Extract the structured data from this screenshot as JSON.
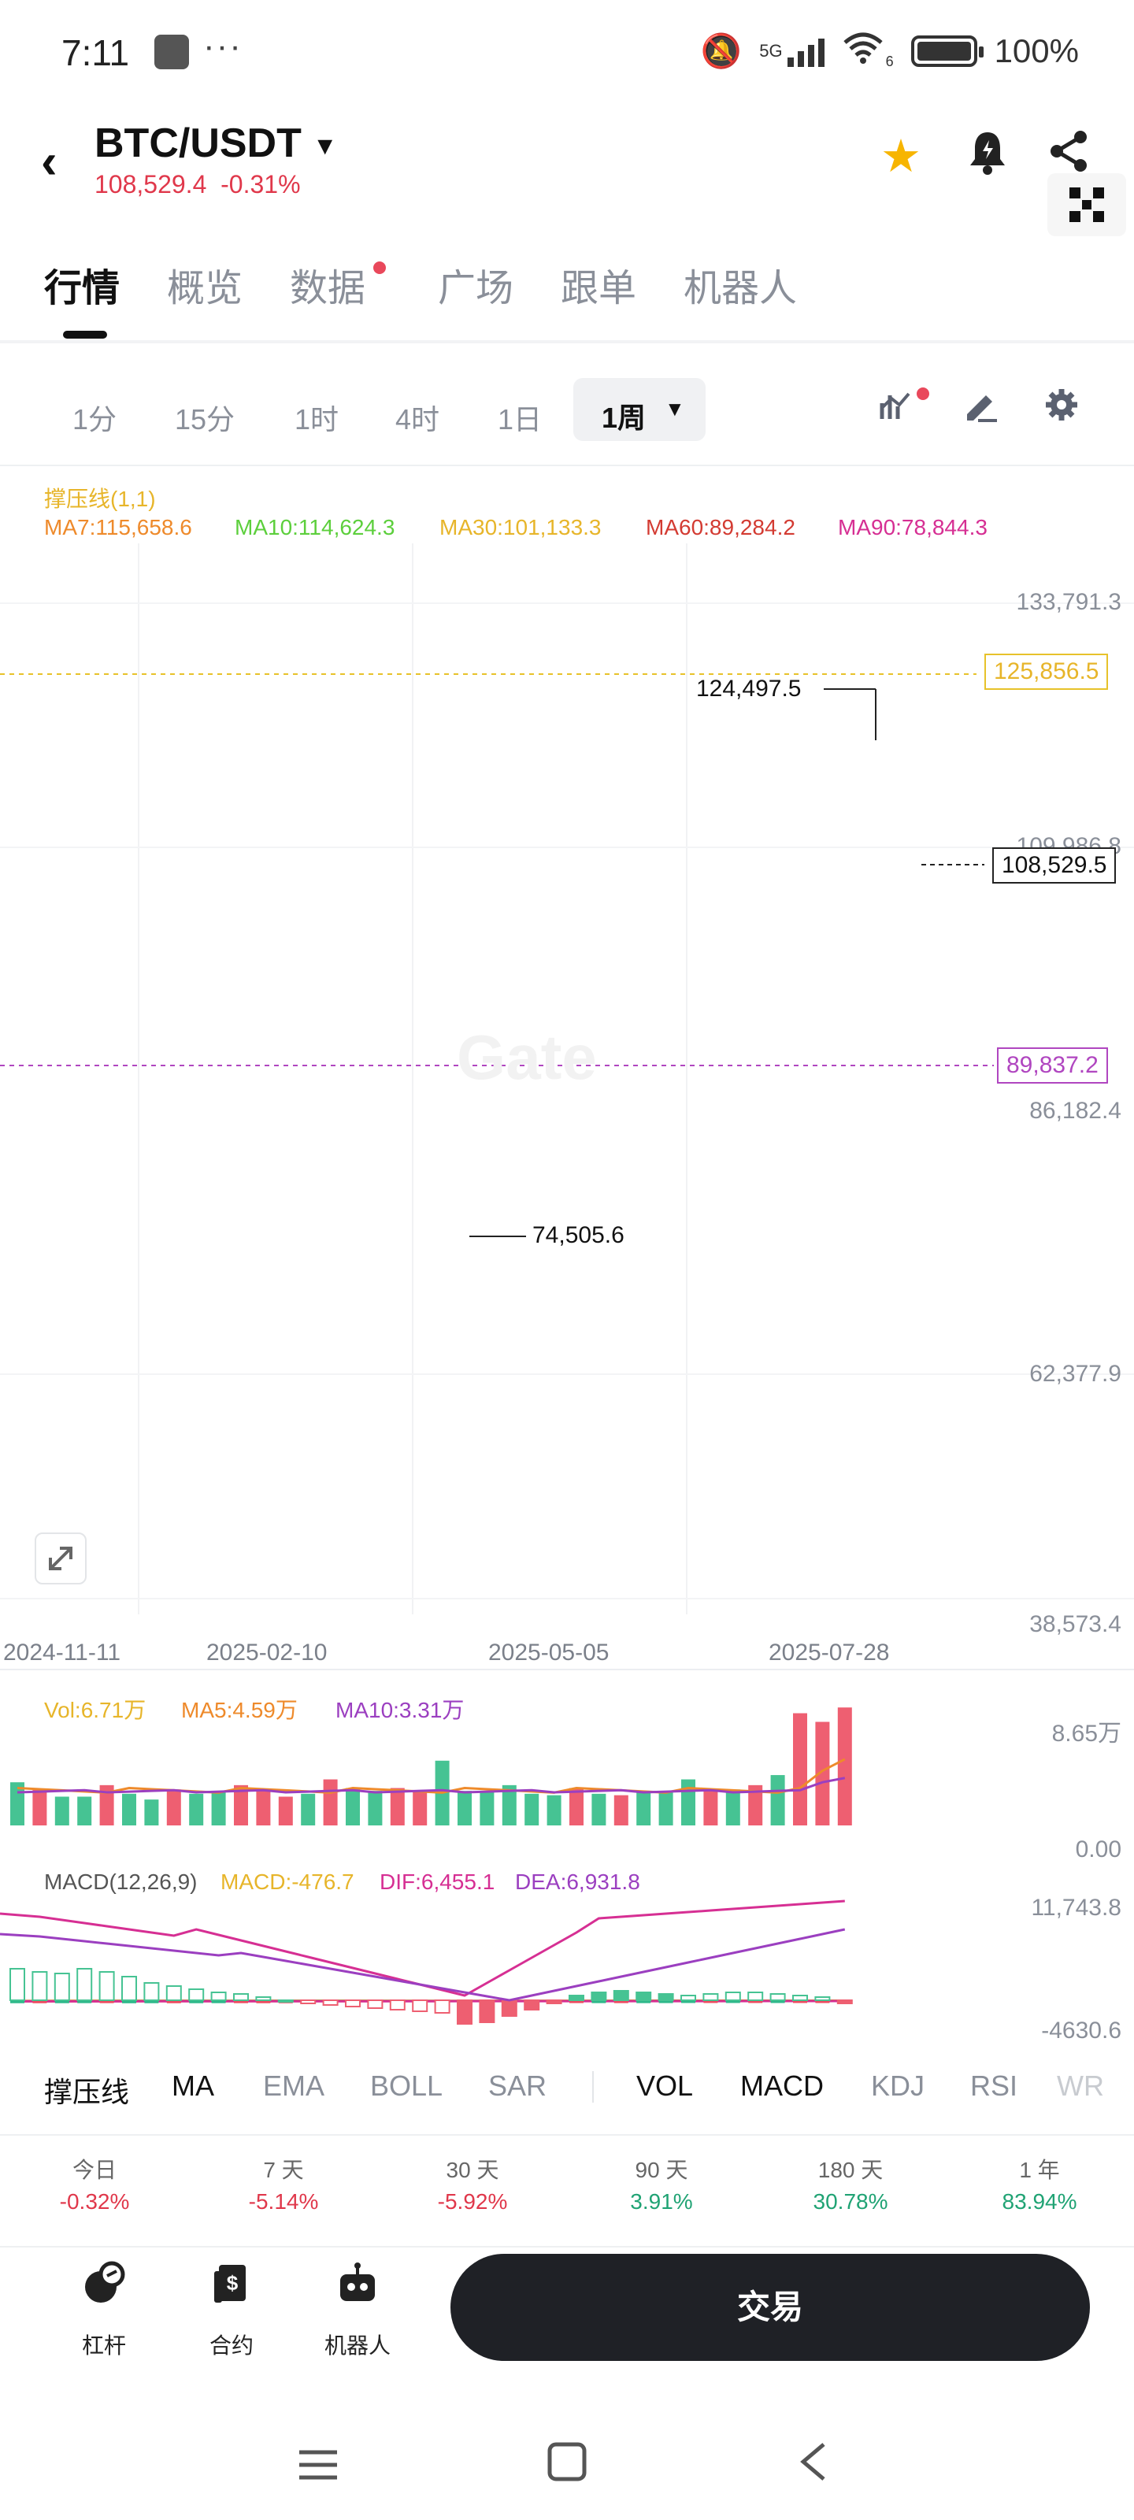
{
  "status_bar": {
    "time": "7:11",
    "dots": "···",
    "network": "5G",
    "wifi_sub": "6",
    "battery": "100%"
  },
  "header": {
    "pair": "BTC/USDT",
    "price": "108,529.4",
    "change": "-0.31%",
    "icons": [
      "star-icon",
      "alarm-bell-icon",
      "share-icon",
      "qr-icon"
    ]
  },
  "tabs": [
    "行情",
    "概览",
    "数据",
    "广场",
    "跟单",
    "机器人"
  ],
  "intervals": [
    "1分",
    "15分",
    "1时",
    "4时",
    "1日"
  ],
  "interval_active": "1周",
  "indicators": {
    "sr": "撑压线(1,1)",
    "ma7": "MA7:115,658.6",
    "ma10": "MA10:114,624.3",
    "ma30": "MA30:101,133.3",
    "ma60": "MA60:89,284.2",
    "ma90": "MA90:78,844.3"
  },
  "price_axis": {
    "t1": "133,791.3",
    "t2": "109,986.8",
    "t3": "86,182.4",
    "t4": "62,377.9",
    "t5": "38,573.4"
  },
  "price_tags": {
    "resistance": "125,856.5",
    "current": "108,529.5",
    "support": "89,837.2",
    "high": "124,497.5",
    "low": "74,505.6"
  },
  "dates": [
    "2024-11-11",
    "2025-02-10",
    "2025-05-05",
    "2025-07-28"
  ],
  "volume": {
    "vol": "Vol:6.71万",
    "ma5": "MA5:4.59万",
    "ma10": "MA10:3.31万",
    "top": "8.65万",
    "bottom": "0.00"
  },
  "macd": {
    "label": "MACD(12,26,9)",
    "macd": "MACD:-476.7",
    "dif": "DIF:6,455.1",
    "dea": "DEA:6,931.8",
    "top": "11,743.8",
    "bottom": "-4630.6"
  },
  "indicator_tabs": [
    "撑压线",
    "MA",
    "EMA",
    "BOLL",
    "SAR",
    "VOL",
    "MACD",
    "KDJ",
    "RSI",
    "WR"
  ],
  "performance": [
    {
      "label": "今日",
      "value": "-0.32%"
    },
    {
      "label": "7 天",
      "value": "-5.14%"
    },
    {
      "label": "30 天",
      "value": "-5.92%"
    },
    {
      "label": "90 天",
      "value": "3.91%"
    },
    {
      "label": "180 天",
      "value": "30.78%"
    },
    {
      "label": "1 年",
      "value": "83.94%"
    }
  ],
  "bottom": {
    "leverage": "杠杆",
    "contract": "合约",
    "robot": "机器人",
    "trade": "交易"
  },
  "colors": {
    "up": "#2eb88a",
    "down": "#ee4a5f",
    "ma7": "#ee8a2b",
    "ma10": "#5ccf3c",
    "ma30": "#e7c22a",
    "ma60": "#d33b32",
    "ma90": "#d62f93",
    "accent_star": "#f7b500"
  }
}
